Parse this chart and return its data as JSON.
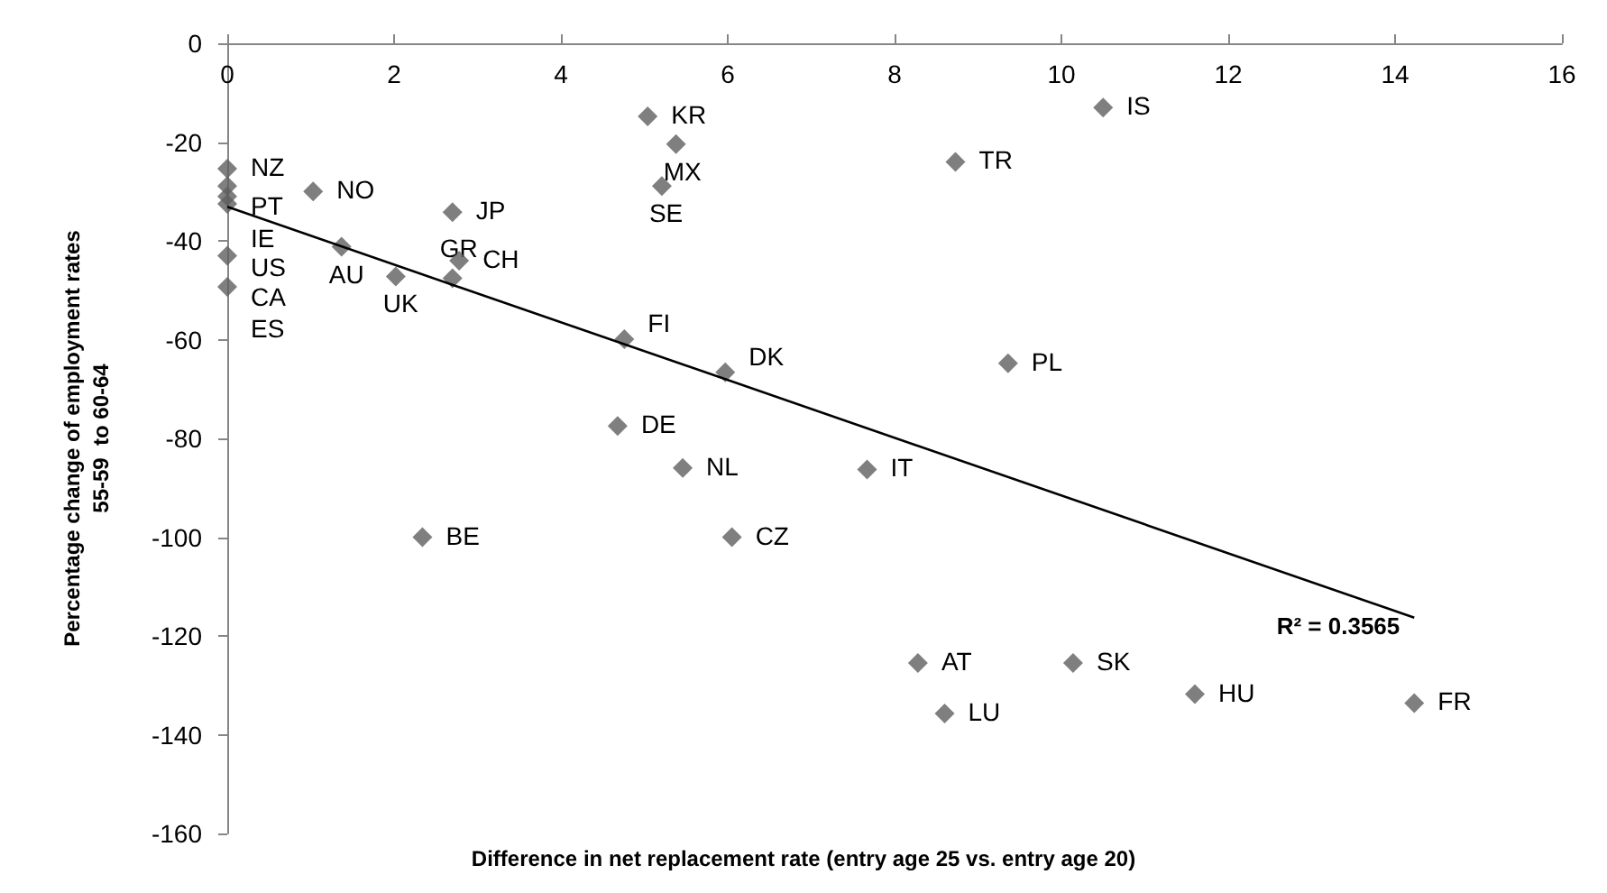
{
  "chart_data": {
    "type": "scatter",
    "xlabel": "Difference in net replacement rate (entry age 25 vs. entry age 20)",
    "ylabel": "Percentage change of employment rates\n55-59  to 60-64",
    "xlim": [
      0,
      16
    ],
    "xticks": [
      0,
      2,
      4,
      6,
      8,
      10,
      12,
      14,
      16
    ],
    "ylim": [
      -160,
      0
    ],
    "yticks": [
      -160,
      -140,
      -120,
      -100,
      -80,
      -60,
      -40,
      -20,
      0
    ],
    "grid": false,
    "marker": "diamond",
    "series": [
      {
        "color": "#5f5f5f",
        "x": [
          0,
          0,
          0,
          0,
          0,
          0,
          1.03,
          1.37,
          2.02,
          2.7,
          2.78,
          2.7,
          4.76,
          5.04,
          5.38,
          5.21,
          4.68,
          5.46,
          2.34,
          5.97,
          6.05,
          7.67,
          8.73,
          10.5,
          9.36,
          8.28,
          8.6,
          10.14,
          11.6,
          14.23
        ],
        "values": [
          -25.4,
          -28.9,
          -31,
          -32.5,
          -43,
          -49.3,
          -30,
          -41.2,
          -47.2,
          -34.2,
          -44,
          -47.6,
          -59.9,
          -14.8,
          -20.4,
          -28.9,
          -77.5,
          -86,
          -100,
          -66.6,
          -100,
          -86.3,
          -24,
          -13,
          -64.8,
          -125.5,
          -135.7,
          -125.5,
          -131.8,
          -133.6
        ]
      },
      {
        "type": "line",
        "color": "#000000",
        "marker": "none",
        "x": [
          0,
          14.23
        ],
        "values": [
          -33.1,
          -116.3
        ]
      }
    ],
    "annotations": [
      {
        "text": "NZ",
        "x": 0,
        "y": -25.4
      },
      {
        "text": "PT",
        "x": 0,
        "y": -28.9
      },
      {
        "text": "IE",
        "x": 0,
        "y": -31
      },
      {
        "text": "US",
        "x": 0,
        "y": -32.5
      },
      {
        "text": "CA",
        "x": 0,
        "y": -43
      },
      {
        "text": "ES",
        "x": 0,
        "y": -49.3
      },
      {
        "text": "NO",
        "x": 1.03,
        "y": -30
      },
      {
        "text": "AU",
        "x": 1.37,
        "y": -41.2
      },
      {
        "text": "UK",
        "x": 2.02,
        "y": -47.2
      },
      {
        "text": "JP",
        "x": 2.7,
        "y": -34.2
      },
      {
        "text": "CH",
        "x": 2.78,
        "y": -44
      },
      {
        "text": "GR",
        "x": 2.7,
        "y": -47.6
      },
      {
        "text": "FI",
        "x": 4.76,
        "y": -59.9
      },
      {
        "text": "KR",
        "x": 5.04,
        "y": -14.8
      },
      {
        "text": "MX",
        "x": 5.38,
        "y": -20.4
      },
      {
        "text": "SE",
        "x": 5.21,
        "y": -28.9
      },
      {
        "text": "DE",
        "x": 4.68,
        "y": -77.5
      },
      {
        "text": "NL",
        "x": 5.46,
        "y": -86
      },
      {
        "text": "BE",
        "x": 2.34,
        "y": -100
      },
      {
        "text": "DK",
        "x": 5.97,
        "y": -66.6
      },
      {
        "text": "CZ",
        "x": 6.05,
        "y": -100
      },
      {
        "text": "IT",
        "x": 7.67,
        "y": -86.3
      },
      {
        "text": "TR",
        "x": 8.73,
        "y": -24
      },
      {
        "text": "IS",
        "x": 10.5,
        "y": -13
      },
      {
        "text": "PL",
        "x": 9.36,
        "y": -64.8
      },
      {
        "text": "AT",
        "x": 8.28,
        "y": -125.5
      },
      {
        "text": "LU",
        "x": 8.6,
        "y": -135.7
      },
      {
        "text": "SK",
        "x": 10.14,
        "y": -125.5
      },
      {
        "text": "HU",
        "x": 11.6,
        "y": -131.8
      },
      {
        "text": "FR",
        "x": 14.23,
        "y": -133.6
      },
      "R² = 0.3565"
    ]
  }
}
